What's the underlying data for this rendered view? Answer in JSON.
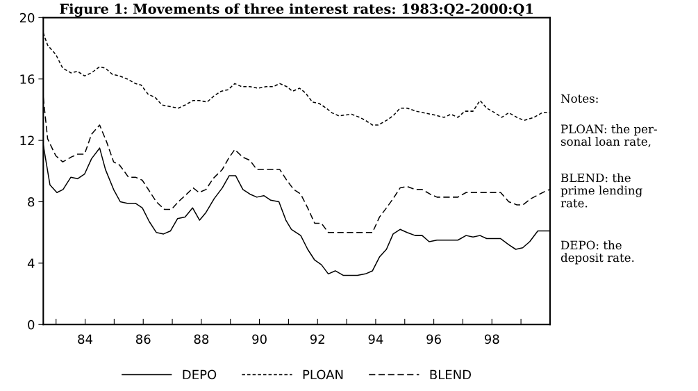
{
  "chart_data": {
    "type": "line",
    "title": "Figure 1: Movements of three interest rates: 1983:Q2-2000:Q1",
    "xlim": [
      82.56,
      100.0
    ],
    "xticks": [
      {
        "value": 83,
        "label": null
      },
      {
        "value": 84,
        "label": "84"
      },
      {
        "value": 85,
        "label": null
      },
      {
        "value": 86,
        "label": "86"
      },
      {
        "value": 87,
        "label": null
      },
      {
        "value": 88,
        "label": "88"
      },
      {
        "value": 89,
        "label": null
      },
      {
        "value": 90,
        "label": "90"
      },
      {
        "value": 91,
        "label": null
      },
      {
        "value": 92,
        "label": "92"
      },
      {
        "value": 93,
        "label": null
      },
      {
        "value": 94,
        "label": "94"
      },
      {
        "value": 95,
        "label": null
      },
      {
        "value": 96,
        "label": "96"
      },
      {
        "value": 97,
        "label": null
      },
      {
        "value": 98,
        "label": "98"
      },
      {
        "value": 99,
        "label": null
      },
      {
        "value": 100,
        "label": null
      }
    ],
    "ylim": [
      0,
      20
    ],
    "yticks": [
      0,
      4,
      8,
      12,
      16,
      20
    ],
    "grid": false,
    "legend": "bottom",
    "series": [
      {
        "name": "DEPO",
        "color": "#000000",
        "line_style": "solid",
        "x": [
          82.56,
          82.79,
          83.03,
          83.24,
          83.51,
          83.74,
          83.98,
          84.22,
          84.5,
          84.7,
          84.98,
          85.21,
          85.45,
          85.73,
          85.97,
          86.21,
          86.45,
          86.7,
          86.94,
          87.18,
          87.44,
          87.7,
          87.94,
          88.16,
          88.44,
          88.72,
          88.96,
          89.18,
          89.43,
          89.67,
          89.91,
          90.15,
          90.39,
          90.67,
          90.91,
          91.1,
          91.42,
          91.66,
          91.9,
          92.13,
          92.37,
          92.61,
          92.89,
          93.37,
          93.65,
          93.89,
          94.13,
          94.37,
          94.6,
          94.84,
          95.08,
          95.36,
          95.6,
          95.84,
          96.11,
          96.35,
          96.59,
          96.83,
          97.11,
          97.35,
          97.59,
          97.82,
          98.06,
          98.3,
          98.58,
          98.82,
          99.06,
          99.3,
          99.58,
          99.82,
          100.0
        ],
        "values": [
          11.7,
          9.1,
          8.6,
          8.8,
          9.6,
          9.5,
          9.8,
          10.8,
          11.5,
          10.1,
          8.8,
          8.0,
          7.9,
          7.9,
          7.6,
          6.7,
          6.0,
          5.9,
          6.1,
          6.9,
          7.0,
          7.6,
          6.8,
          7.3,
          8.2,
          8.9,
          9.7,
          9.7,
          8.8,
          8.5,
          8.3,
          8.4,
          8.1,
          8.0,
          6.8,
          6.2,
          5.8,
          4.9,
          4.2,
          3.9,
          3.3,
          3.5,
          3.2,
          3.2,
          3.3,
          3.5,
          4.4,
          4.9,
          5.9,
          6.2,
          6.0,
          5.8,
          5.8,
          5.4,
          5.5,
          5.5,
          5.5,
          5.5,
          5.8,
          5.7,
          5.8,
          5.6,
          5.6,
          5.6,
          5.2,
          4.9,
          5.0,
          5.4,
          6.1,
          6.1,
          6.1
        ]
      },
      {
        "name": "PLOAN",
        "color": "#000000",
        "line_style": "dotted",
        "x": [
          82.56,
          82.71,
          82.99,
          83.23,
          83.51,
          83.74,
          83.98,
          84.22,
          84.5,
          84.7,
          84.94,
          85.18,
          85.45,
          85.73,
          85.93,
          86.17,
          86.41,
          86.65,
          86.93,
          87.21,
          87.44,
          87.72,
          87.92,
          88.2,
          88.44,
          88.68,
          88.92,
          89.15,
          89.39,
          89.67,
          89.95,
          90.23,
          90.47,
          90.7,
          90.94,
          91.14,
          91.38,
          91.58,
          91.82,
          92.06,
          92.3,
          92.49,
          92.73,
          93.17,
          93.45,
          93.65,
          93.89,
          94.09,
          94.37,
          94.6,
          94.84,
          95.08,
          95.4,
          95.64,
          95.92,
          96.35,
          96.59,
          96.83,
          97.07,
          97.35,
          97.59,
          97.82,
          98.1,
          98.34,
          98.58,
          98.86,
          99.1,
          99.45,
          99.73,
          100.0
        ],
        "values": [
          19.0,
          18.2,
          17.6,
          16.7,
          16.4,
          16.5,
          16.2,
          16.4,
          16.8,
          16.7,
          16.3,
          16.2,
          16.0,
          15.7,
          15.6,
          15.0,
          14.8,
          14.3,
          14.2,
          14.1,
          14.3,
          14.6,
          14.6,
          14.5,
          14.9,
          15.2,
          15.3,
          15.7,
          15.5,
          15.5,
          15.4,
          15.5,
          15.5,
          15.7,
          15.5,
          15.2,
          15.4,
          15.1,
          14.5,
          14.4,
          14.1,
          13.8,
          13.6,
          13.7,
          13.5,
          13.3,
          13.0,
          13.0,
          13.3,
          13.6,
          14.1,
          14.1,
          13.9,
          13.8,
          13.7,
          13.5,
          13.7,
          13.5,
          13.9,
          13.9,
          14.6,
          14.1,
          13.8,
          13.5,
          13.8,
          13.5,
          13.3,
          13.5,
          13.8,
          13.8
        ]
      },
      {
        "name": "BLEND",
        "color": "#000000",
        "line_style": "dashed",
        "x": [
          82.56,
          82.71,
          82.99,
          83.23,
          83.51,
          83.74,
          83.98,
          84.22,
          84.5,
          84.74,
          84.98,
          85.18,
          85.38,
          85.49,
          85.73,
          85.97,
          86.21,
          86.45,
          86.73,
          86.97,
          87.21,
          87.44,
          87.72,
          87.92,
          88.16,
          88.4,
          88.72,
          88.96,
          89.15,
          89.43,
          89.67,
          89.91,
          90.19,
          90.43,
          90.7,
          90.94,
          91.18,
          91.42,
          91.66,
          91.9,
          92.13,
          92.37,
          93.89,
          94.13,
          94.37,
          94.6,
          94.84,
          95.08,
          95.36,
          95.6,
          95.87,
          96.11,
          96.35,
          96.59,
          96.83,
          97.11,
          98.3,
          98.58,
          98.86,
          99.07,
          99.34,
          99.85,
          100.0
        ],
        "values": [
          14.8,
          12.1,
          11.0,
          10.6,
          10.9,
          11.1,
          11.1,
          12.4,
          13.0,
          11.9,
          10.6,
          10.4,
          9.9,
          9.6,
          9.6,
          9.4,
          8.7,
          8.0,
          7.5,
          7.5,
          8.0,
          8.4,
          8.9,
          8.6,
          8.8,
          9.5,
          10.1,
          10.9,
          11.4,
          10.9,
          10.7,
          10.1,
          10.1,
          10.1,
          10.1,
          9.4,
          8.8,
          8.5,
          7.6,
          6.6,
          6.6,
          6.0,
          6.0,
          7.0,
          7.6,
          8.2,
          8.9,
          9.0,
          8.8,
          8.8,
          8.5,
          8.3,
          8.3,
          8.3,
          8.3,
          8.6,
          8.6,
          8.0,
          7.8,
          7.8,
          8.2,
          8.7,
          8.8
        ]
      }
    ],
    "annotations": [
      "Notes:",
      "PLOAN: the per-\nsonal loan rate,",
      "BLEND: the\nprime lending\nrate.",
      "DEPO: the\ndeposit rate."
    ]
  }
}
